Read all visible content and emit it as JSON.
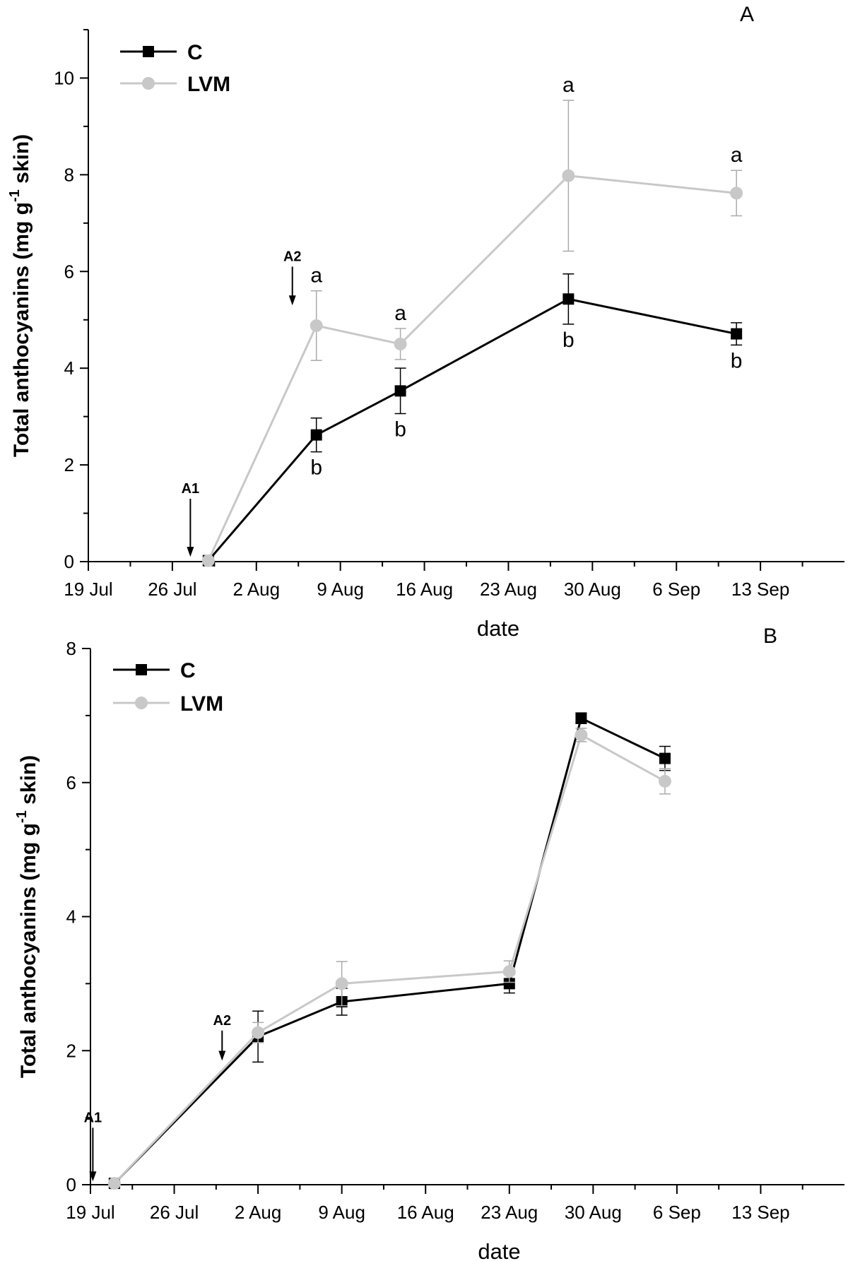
{
  "chart_data": [
    {
      "type": "line",
      "panel_label": "A",
      "xlabel": "date",
      "ylabel_main": "Total anthocyanins (mg g",
      "ylabel_sup": "-1",
      "ylabel_end": " skin)",
      "ylim": [
        0,
        11
      ],
      "yticks": [
        0,
        2,
        4,
        6,
        8,
        10
      ],
      "xlim": [
        0,
        63
      ],
      "xticks": [
        {
          "day": 0,
          "label": "19 Jul"
        },
        {
          "day": 7,
          "label": "26 Jul"
        },
        {
          "day": 14,
          "label": "2 Aug"
        },
        {
          "day": 21,
          "label": "9 Aug"
        },
        {
          "day": 28,
          "label": "16 Aug"
        },
        {
          "day": 35,
          "label": "23 Aug"
        },
        {
          "day": 42,
          "label": "30 Aug"
        },
        {
          "day": 49,
          "label": "6 Sep"
        },
        {
          "day": 56,
          "label": "13 Sep"
        }
      ],
      "series": [
        {
          "name": "C",
          "color": "#000000",
          "marker": "square",
          "points": [
            {
              "day": 10,
              "y": 0.02,
              "err": 0
            },
            {
              "day": 19,
              "y": 2.62,
              "err": 0.35,
              "label": "b"
            },
            {
              "day": 26,
              "y": 3.53,
              "err": 0.47,
              "label": "b"
            },
            {
              "day": 40,
              "y": 5.43,
              "err": 0.52,
              "label": "b"
            },
            {
              "day": 54,
              "y": 4.71,
              "err": 0.23,
              "label": "b"
            }
          ]
        },
        {
          "name": "LVM",
          "color": "#c8c8c8",
          "marker": "circle",
          "points": [
            {
              "day": 10,
              "y": 0.02,
              "err": 0
            },
            {
              "day": 19,
              "y": 4.88,
              "err": 0.72,
              "label": "a"
            },
            {
              "day": 26,
              "y": 4.5,
              "err": 0.32,
              "label": "a"
            },
            {
              "day": 40,
              "y": 7.98,
              "err": 1.56,
              "label": "a"
            },
            {
              "day": 54,
              "y": 7.62,
              "err": 0.47,
              "label": "a"
            }
          ]
        }
      ],
      "annotations": [
        {
          "text": "A1",
          "day": 8.5,
          "y_from": 1.3,
          "y_to": 0.1
        },
        {
          "text": "A2",
          "day": 17,
          "y_from": 6.1,
          "y_to": 5.3
        }
      ]
    },
    {
      "type": "line",
      "panel_label": "B",
      "xlabel": "date",
      "ylabel_main": "Total anthocyanins (mg g",
      "ylabel_sup": "-1",
      "ylabel_end": " skin)",
      "ylim": [
        0,
        8
      ],
      "yticks": [
        0,
        2,
        4,
        6,
        8
      ],
      "xlim": [
        0,
        63
      ],
      "xticks": [
        {
          "day": 0,
          "label": "19 Jul"
        },
        {
          "day": 7,
          "label": "26 Jul"
        },
        {
          "day": 14,
          "label": "2 Aug"
        },
        {
          "day": 21,
          "label": "9 Aug"
        },
        {
          "day": 28,
          "label": "16 Aug"
        },
        {
          "day": 35,
          "label": "23 Aug"
        },
        {
          "day": 42,
          "label": "30 Aug"
        },
        {
          "day": 49,
          "label": "6 Sep"
        },
        {
          "day": 56,
          "label": "13 Sep"
        }
      ],
      "series": [
        {
          "name": "C",
          "color": "#000000",
          "marker": "square",
          "points": [
            {
              "day": 2,
              "y": 0.02,
              "err": 0
            },
            {
              "day": 14,
              "y": 2.21,
              "err": 0.38
            },
            {
              "day": 21,
              "y": 2.73,
              "err": 0.2
            },
            {
              "day": 35,
              "y": 3.0,
              "err": 0.14
            },
            {
              "day": 41,
              "y": 6.96,
              "err": 0.08
            },
            {
              "day": 48,
              "y": 6.36,
              "err": 0.18
            }
          ]
        },
        {
          "name": "LVM",
          "color": "#c8c8c8",
          "marker": "circle",
          "points": [
            {
              "day": 2,
              "y": 0.02,
              "err": 0
            },
            {
              "day": 14,
              "y": 2.27,
              "err": 0.15
            },
            {
              "day": 21,
              "y": 3.0,
              "err": 0.33
            },
            {
              "day": 35,
              "y": 3.18,
              "err": 0.16
            },
            {
              "day": 41,
              "y": 6.71,
              "err": 0.1
            },
            {
              "day": 48,
              "y": 6.02,
              "err": 0.19
            }
          ]
        }
      ],
      "annotations": [
        {
          "text": "A1",
          "day": 0.2,
          "y_from": 0.85,
          "y_to": 0.05
        },
        {
          "text": "A2",
          "day": 11,
          "y_from": 2.3,
          "y_to": 1.85
        }
      ]
    }
  ]
}
